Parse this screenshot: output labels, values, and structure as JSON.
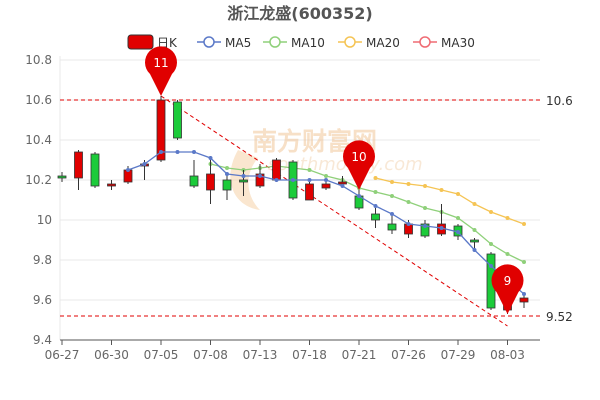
{
  "title": "浙江龙盛(600352)",
  "legend": [
    {
      "key": "kline",
      "label": "日K",
      "color": "#e00000"
    },
    {
      "key": "ma5",
      "label": "MA5",
      "color": "#5b79c8"
    },
    {
      "key": "ma10",
      "label": "MA10",
      "color": "#8fd07a"
    },
    {
      "key": "ma20",
      "label": "MA20",
      "color": "#f5c454"
    },
    {
      "key": "ma30",
      "label": "MA30",
      "color": "#ef6b73"
    }
  ],
  "watermark": {
    "cn": "南方财富网",
    "en": "southmoney.com"
  },
  "colors": {
    "up": "#e00000",
    "down": "#1ccb3a",
    "grid": "#e8e8e8",
    "trend": "#e00000"
  },
  "chart_data": {
    "type": "candlestick",
    "ylim": [
      9.4,
      10.8
    ],
    "yticks": [
      "9.4",
      "9.6",
      "9.8",
      "10",
      "10.2",
      "10.4",
      "10.6",
      "10.8"
    ],
    "xtick_labels": [
      {
        "index": 0,
        "label": "06-27"
      },
      {
        "index": 3,
        "label": "06-30"
      },
      {
        "index": 6,
        "label": "07-05"
      },
      {
        "index": 9,
        "label": "07-08"
      },
      {
        "index": 12,
        "label": "07-13"
      },
      {
        "index": 15,
        "label": "07-18"
      },
      {
        "index": 18,
        "label": "07-21"
      },
      {
        "index": 21,
        "label": "07-26"
      },
      {
        "index": 24,
        "label": "07-29"
      },
      {
        "index": 27,
        "label": "08-03"
      }
    ],
    "candles": [
      {
        "open": 10.22,
        "close": 10.21,
        "high": 10.24,
        "low": 10.19
      },
      {
        "open": 10.21,
        "close": 10.34,
        "high": 10.35,
        "low": 10.15
      },
      {
        "open": 10.33,
        "close": 10.17,
        "high": 10.34,
        "low": 10.16
      },
      {
        "open": 10.17,
        "close": 10.18,
        "high": 10.2,
        "low": 10.15
      },
      {
        "open": 10.19,
        "close": 10.25,
        "high": 10.27,
        "low": 10.18
      },
      {
        "open": 10.28,
        "close": 10.28,
        "high": 10.3,
        "low": 10.2
      },
      {
        "open": 10.3,
        "close": 10.6,
        "high": 10.62,
        "low": 10.29
      },
      {
        "open": 10.59,
        "close": 10.41,
        "high": 10.6,
        "low": 10.4
      },
      {
        "open": 10.22,
        "close": 10.17,
        "high": 10.3,
        "low": 10.16
      },
      {
        "open": 10.15,
        "close": 10.23,
        "high": 10.32,
        "low": 10.08
      },
      {
        "open": 10.2,
        "close": 10.15,
        "high": 10.23,
        "low": 10.1
      },
      {
        "open": 10.2,
        "close": 10.19,
        "high": 10.25,
        "low": 10.12
      },
      {
        "open": 10.17,
        "close": 10.23,
        "high": 10.28,
        "low": 10.16
      },
      {
        "open": 10.2,
        "close": 10.3,
        "high": 10.31,
        "low": 10.19
      },
      {
        "open": 10.29,
        "close": 10.11,
        "high": 10.3,
        "low": 10.1
      },
      {
        "open": 10.1,
        "close": 10.18,
        "high": 10.19,
        "low": 10.1
      },
      {
        "open": 10.16,
        "close": 10.18,
        "high": 10.2,
        "low": 10.15
      },
      {
        "open": 10.19,
        "close": 10.19,
        "high": 10.22,
        "low": 10.17
      },
      {
        "open": 10.12,
        "close": 10.06,
        "high": 10.15,
        "low": 10.05
      },
      {
        "open": 10.03,
        "close": 10.0,
        "high": 10.06,
        "low": 9.96
      },
      {
        "open": 9.98,
        "close": 9.95,
        "high": 10.02,
        "low": 9.93
      },
      {
        "open": 9.93,
        "close": 9.98,
        "high": 10.0,
        "low": 9.91
      },
      {
        "open": 9.98,
        "close": 9.92,
        "high": 10.0,
        "low": 9.91
      },
      {
        "open": 9.93,
        "close": 9.98,
        "high": 10.08,
        "low": 9.92
      },
      {
        "open": 9.97,
        "close": 9.92,
        "high": 9.98,
        "low": 9.9
      },
      {
        "open": 9.9,
        "close": 9.89,
        "high": 9.91,
        "low": 9.85
      },
      {
        "open": 9.83,
        "close": 9.56,
        "high": 9.84,
        "low": 9.55
      },
      {
        "open": 9.55,
        "close": 9.58,
        "high": 9.62,
        "low": 9.53
      },
      {
        "open": 9.59,
        "close": 9.61,
        "high": 9.63,
        "low": 9.56
      }
    ],
    "ma5": [
      null,
      null,
      null,
      null,
      10.25,
      10.28,
      10.34,
      10.34,
      10.34,
      10.31,
      10.23,
      10.22,
      10.22,
      10.2,
      10.2,
      10.2,
      10.2,
      10.17,
      10.12,
      10.07,
      10.03,
      9.98,
      9.97,
      9.96,
      9.94,
      9.85,
      9.77,
      9.7,
      9.63
    ],
    "ma10": [
      null,
      null,
      null,
      null,
      null,
      null,
      null,
      null,
      null,
      10.28,
      10.26,
      10.25,
      10.26,
      10.27,
      10.26,
      10.25,
      10.22,
      10.2,
      10.16,
      10.14,
      10.12,
      10.09,
      10.06,
      10.04,
      10.01,
      9.95,
      9.88,
      9.83,
      9.79
    ],
    "ma20": [
      null,
      null,
      null,
      null,
      null,
      null,
      null,
      null,
      null,
      null,
      null,
      null,
      null,
      null,
      null,
      null,
      null,
      null,
      null,
      10.21,
      10.19,
      10.18,
      10.17,
      10.15,
      10.13,
      10.08,
      10.04,
      10.01,
      9.98
    ],
    "ma30": [],
    "markers": [
      {
        "index": 6,
        "price": 10.62,
        "label": "11"
      },
      {
        "index": 18,
        "price": 10.15,
        "label": "10"
      },
      {
        "index": 27,
        "price": 9.53,
        "label": "9"
      }
    ],
    "annotations": [
      {
        "value": 10.6,
        "label": "10.6"
      },
      {
        "value": 9.52,
        "label": "9.52"
      }
    ],
    "trendline": {
      "from": {
        "index": 6,
        "price": 10.62
      },
      "to": {
        "index": 27,
        "price": 9.47
      }
    }
  }
}
